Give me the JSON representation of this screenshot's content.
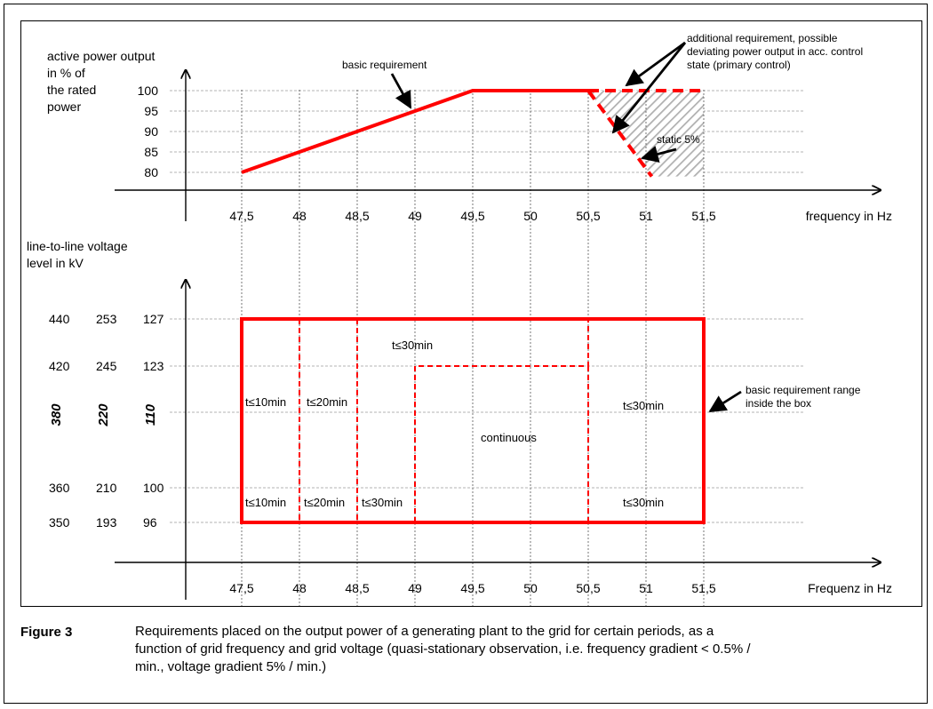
{
  "chart_data": [
    {
      "type": "line",
      "ylabel_lines": [
        "active power output",
        "in % of",
        "the rated",
        "power"
      ],
      "xlabel": "frequency in Hz",
      "x_ticks": [
        47.5,
        48,
        48.5,
        49,
        49.5,
        50,
        50.5,
        51,
        51.5
      ],
      "x_tick_labels": [
        "47,5",
        "48",
        "48,5",
        "49",
        "49,5",
        "50",
        "50,5",
        "51",
        "51,5"
      ],
      "y_ticks": [
        80,
        85,
        90,
        95,
        100
      ],
      "y_tick_labels": [
        "80",
        "85",
        "90",
        "95",
        "100"
      ],
      "series": [
        {
          "style": "solid",
          "color": "#ff0000",
          "points": [
            [
              47.5,
              80
            ],
            [
              49.5,
              100
            ],
            [
              50.5,
              100
            ]
          ]
        },
        {
          "style": "dashed",
          "color": "#ff0000",
          "points": [
            [
              50.5,
              100
            ],
            [
              51.5,
              100
            ]
          ]
        },
        {
          "style": "dashed",
          "color": "#ff0000",
          "points": [
            [
              50.5,
              100
            ],
            [
              51.05,
              79
            ]
          ]
        }
      ],
      "hatched_region": {
        "color": "#b0b0b0",
        "points": [
          [
            50.5,
            100
          ],
          [
            51.5,
            100
          ],
          [
            51.5,
            79
          ],
          [
            51.05,
            79
          ]
        ]
      },
      "annotations": [
        {
          "name": "basic-requirement-label",
          "lines": [
            "basic requirement"
          ]
        },
        {
          "name": "additional-requirement-label",
          "lines": [
            "additional requirement, possible",
            "deviating power output in acc. control",
            "state (primary control)"
          ]
        },
        {
          "name": "static-label",
          "lines": [
            "static 5%"
          ]
        }
      ]
    },
    {
      "type": "area",
      "ylabel_lines": [
        "line-to-line voltage",
        "level in kV"
      ],
      "xlabel": "Frequenz in Hz",
      "x_ticks": [
        47.5,
        48,
        48.5,
        49,
        49.5,
        50,
        50.5,
        51,
        51.5
      ],
      "x_tick_labels": [
        "47,5",
        "48",
        "48,5",
        "49",
        "49,5",
        "50",
        "50,5",
        "51",
        "51,5"
      ],
      "voltage_levels": [
        {
          "values": [
            "440",
            "253",
            "127"
          ],
          "style": "normal"
        },
        {
          "values": [
            "420",
            "245",
            "123"
          ],
          "style": "normal"
        },
        {
          "values": [
            "380",
            "220",
            "110"
          ],
          "style": "nominal"
        },
        {
          "values": [
            "360",
            "210",
            "100"
          ],
          "style": "normal"
        },
        {
          "values": [
            "350",
            "193",
            "96"
          ],
          "style": "normal"
        }
      ],
      "annotations": [
        {
          "name": "basic-requirement-range-label",
          "lines": [
            "basic requirement range",
            "inside the box"
          ]
        }
      ],
      "regions": [
        {
          "name": "region-t10min-upper",
          "label": "t≤10min"
        },
        {
          "name": "region-t20min-upper",
          "label": "t≤20min"
        },
        {
          "name": "region-t30min-top",
          "label": "t≤30min"
        },
        {
          "name": "region-continuous",
          "label": "continuous"
        },
        {
          "name": "region-t30min-right",
          "label": "t≤30min"
        },
        {
          "name": "region-t10min-lower",
          "label": "t≤10min"
        },
        {
          "name": "region-t20min-lower",
          "label": "t≤20min"
        },
        {
          "name": "region-t30min-lower-mid",
          "label": "t≤30min"
        },
        {
          "name": "region-t30min-lower-right",
          "label": "t≤30min"
        }
      ]
    }
  ],
  "caption": {
    "label": "Figure 3",
    "text": "Requirements placed on the output power of a generating plant to the grid for certain periods, as a function of grid frequency and grid voltage (quasi-stationary observation, i.e. frequency gradient < 0.5% / min., voltage gradient 5% / min.)"
  }
}
